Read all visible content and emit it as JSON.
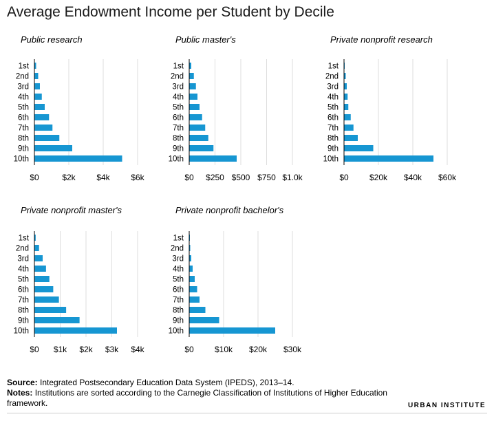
{
  "title": "Average Endowment Income per Student by Decile",
  "colors": {
    "bar": "#1696d2",
    "grid": "#dedede",
    "axis": "#000000"
  },
  "chart_data": [
    {
      "type": "bar",
      "orientation": "horizontal",
      "title": "Public research",
      "categories": [
        "1st",
        "2nd",
        "3rd",
        "4th",
        "5th",
        "6th",
        "7th",
        "8th",
        "9th",
        "10th"
      ],
      "values": [
        100,
        220,
        320,
        430,
        600,
        850,
        1050,
        1450,
        2200,
        5100
      ],
      "xlim": [
        0,
        6000
      ],
      "ticks": [
        0,
        2000,
        4000,
        6000
      ],
      "tick_labels": [
        "$0",
        "$2k",
        "$4k",
        "$6k"
      ]
    },
    {
      "type": "bar",
      "orientation": "horizontal",
      "title": "Public master's",
      "categories": [
        "1st",
        "2nd",
        "3rd",
        "4th",
        "5th",
        "6th",
        "7th",
        "8th",
        "9th",
        "10th"
      ],
      "values": [
        20,
        45,
        65,
        80,
        100,
        125,
        155,
        185,
        235,
        460
      ],
      "xlim": [
        0,
        1000
      ],
      "ticks": [
        0,
        250,
        500,
        750,
        1000
      ],
      "tick_labels": [
        "$0",
        "$250",
        "$500",
        "$750",
        "$1.0k"
      ]
    },
    {
      "type": "bar",
      "orientation": "horizontal",
      "title": "Private nonprofit research",
      "categories": [
        "1st",
        "2nd",
        "3rd",
        "4th",
        "5th",
        "6th",
        "7th",
        "8th",
        "9th",
        "10th"
      ],
      "values": [
        200,
        1000,
        1600,
        2100,
        2500,
        3900,
        5500,
        8000,
        17000,
        52000
      ],
      "xlim": [
        0,
        60000
      ],
      "ticks": [
        0,
        20000,
        40000,
        60000
      ],
      "tick_labels": [
        "$0",
        "$20k",
        "$40k",
        "$60k"
      ]
    },
    {
      "type": "bar",
      "orientation": "horizontal",
      "title": "Private nonprofit master's",
      "categories": [
        "1st",
        "2nd",
        "3rd",
        "4th",
        "5th",
        "6th",
        "7th",
        "8th",
        "9th",
        "10th"
      ],
      "values": [
        50,
        180,
        320,
        450,
        580,
        730,
        950,
        1230,
        1750,
        3200
      ],
      "xlim": [
        0,
        4000
      ],
      "ticks": [
        0,
        1000,
        2000,
        3000,
        4000
      ],
      "tick_labels": [
        "$0",
        "$1k",
        "$2k",
        "$3k",
        "$4k"
      ]
    },
    {
      "type": "bar",
      "orientation": "horizontal",
      "title": "Private nonprofit bachelor's",
      "categories": [
        "1st",
        "2nd",
        "3rd",
        "4th",
        "5th",
        "6th",
        "7th",
        "8th",
        "9th",
        "10th"
      ],
      "values": [
        100,
        300,
        600,
        1000,
        1600,
        2300,
        3000,
        4700,
        8700,
        25000
      ],
      "xlim": [
        0,
        30000
      ],
      "ticks": [
        0,
        10000,
        20000,
        30000
      ],
      "tick_labels": [
        "$0",
        "$10k",
        "$20k",
        "$30k"
      ]
    }
  ],
  "footer": {
    "source_label": "Source:",
    "source_text": "Integrated Postsecondary Education Data System (IPEDS), 2013–14.",
    "notes_label": "Notes:",
    "notes_text": "Institutions are sorted according to the Carnegie Classification of Institutions of Higher Education framework."
  },
  "brand": "URBAN INSTITUTE"
}
